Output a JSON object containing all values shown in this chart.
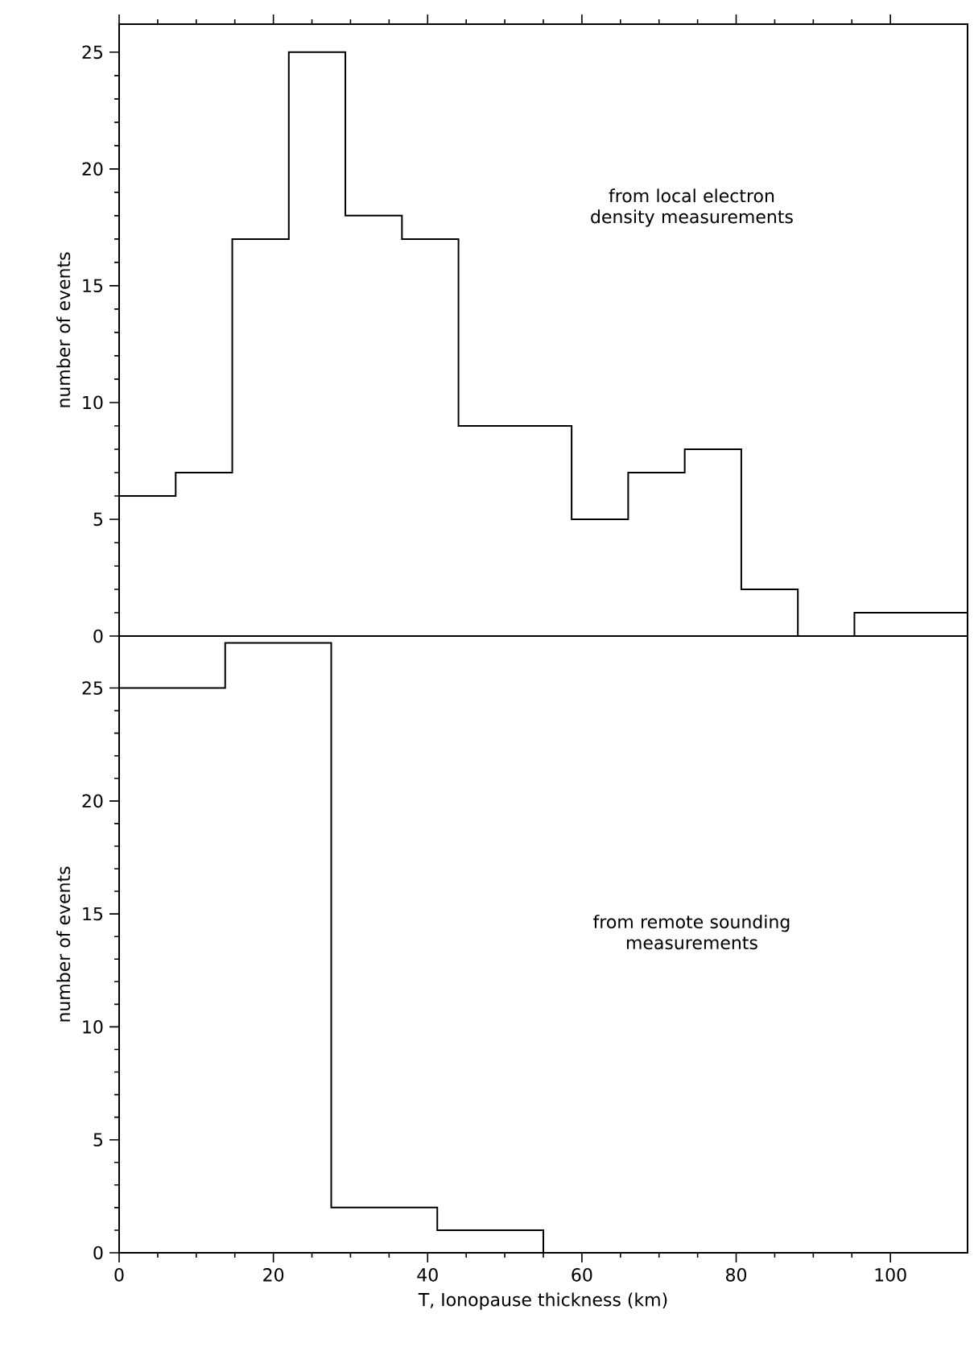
{
  "chart_data": [
    {
      "type": "histogram",
      "ylabel": "number of events",
      "annotations": [
        "from local electron density measurements"
      ],
      "bins": [
        0,
        7.333,
        14.667,
        22,
        29.333,
        36.667,
        44,
        51.333,
        58.667,
        66,
        73.333,
        80.667,
        88,
        95.333,
        102.667,
        110
      ],
      "values": [
        6,
        7,
        17,
        25,
        18,
        17,
        9,
        9,
        5,
        7,
        8,
        2,
        0,
        1,
        1
      ],
      "color": "#000000",
      "xlim": [
        0,
        110
      ],
      "xticks": [
        0,
        20,
        40,
        60,
        80,
        100
      ],
      "ylim": [
        0,
        26.2
      ],
      "yticks": [
        0,
        5,
        10,
        15,
        20,
        25
      ],
      "tick_labels": "y"
    },
    {
      "type": "histogram",
      "xlabel": "T, Ionopause thickness (km)",
      "ylabel": "number of events",
      "annotations": [
        "from remote sounding measurements"
      ],
      "bins": [
        0,
        13.75,
        27.5,
        41.25,
        55,
        68.75,
        82.5,
        96.25,
        110
      ],
      "values": [
        25,
        27,
        2,
        1,
        0,
        0,
        0,
        0
      ],
      "color": "#000000",
      "xlim": [
        0,
        110
      ],
      "xticks": [
        0,
        20,
        40,
        60,
        80,
        100
      ],
      "ylim": [
        0,
        27.3
      ],
      "yticks": [
        0,
        5,
        10,
        15,
        20,
        25
      ]
    }
  ]
}
